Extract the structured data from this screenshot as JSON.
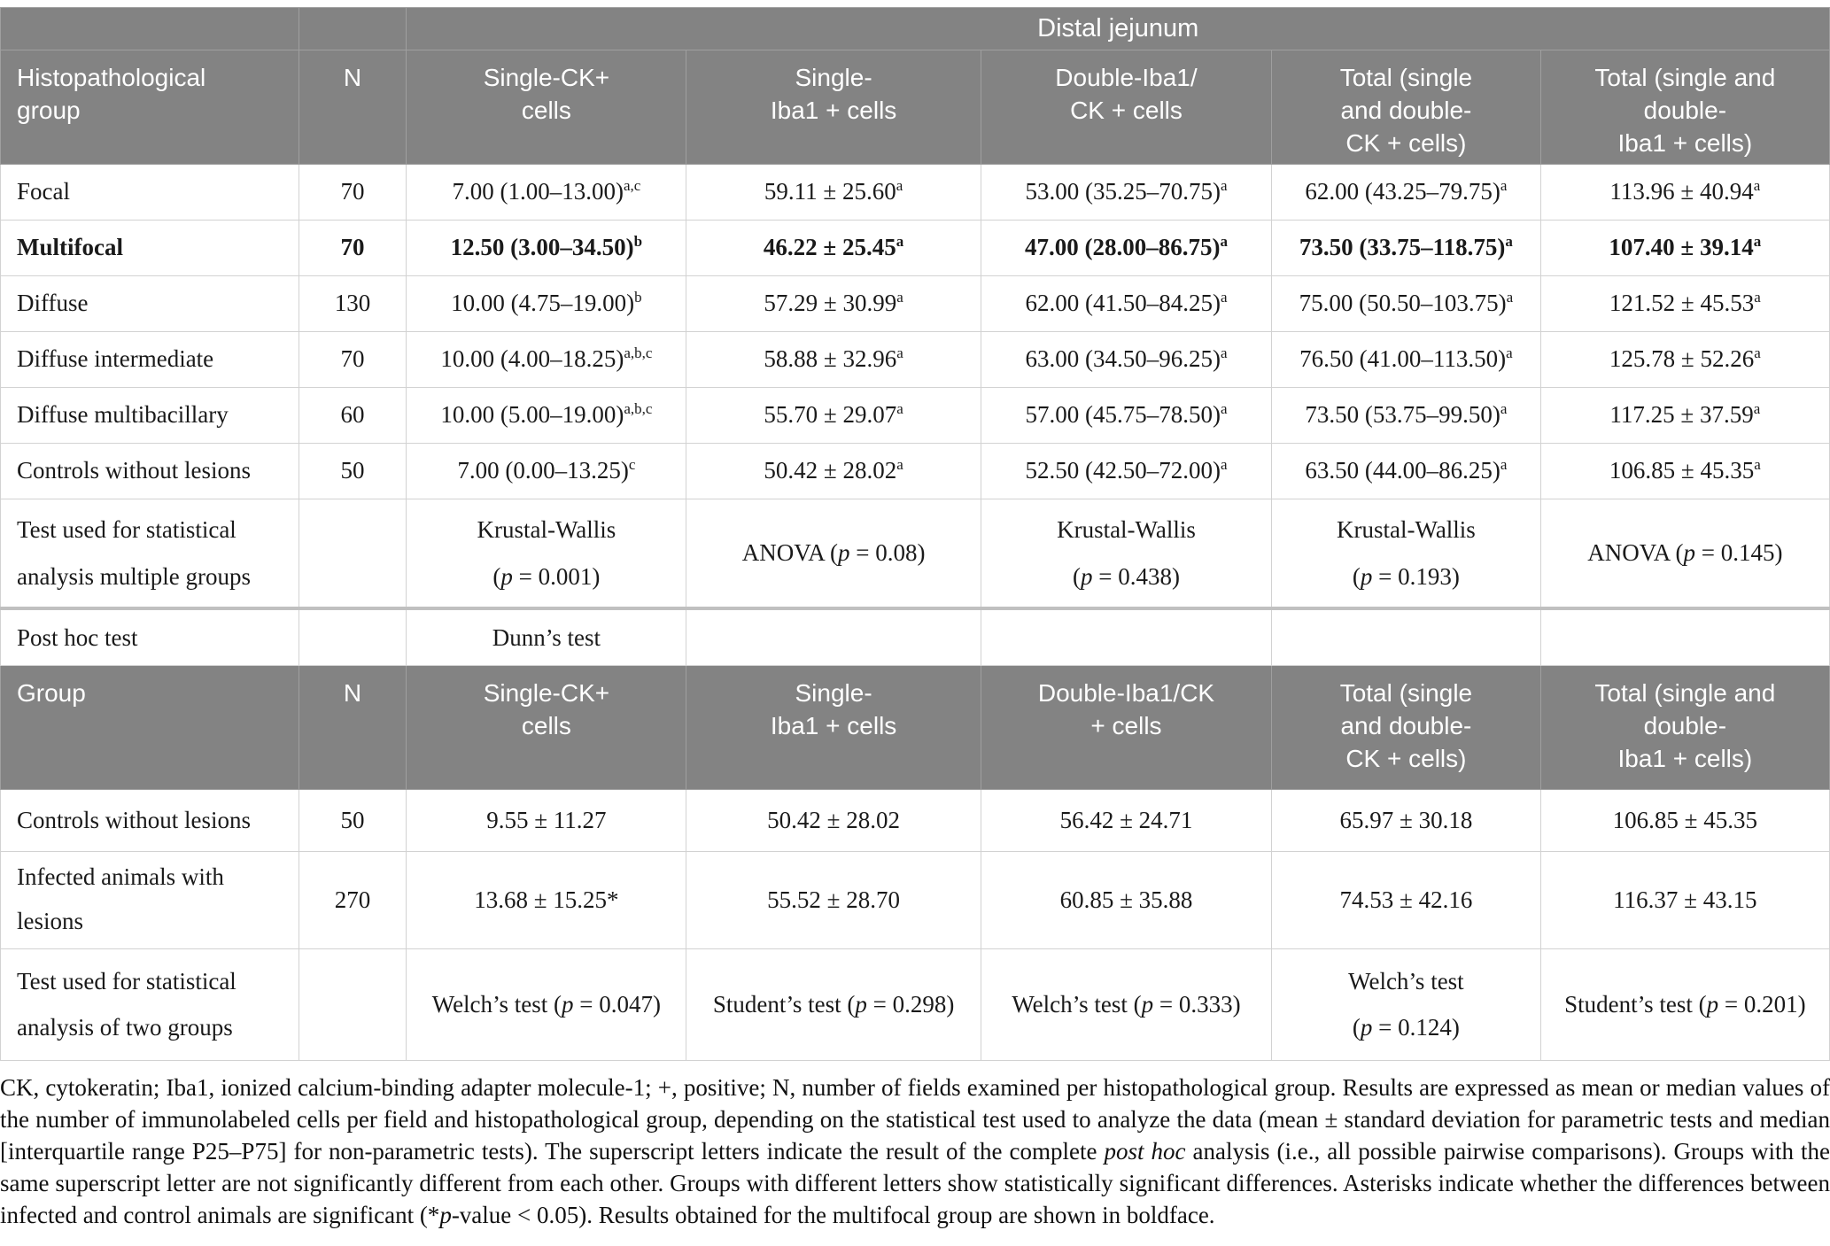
{
  "accent_colors": {
    "header_background": "#838383",
    "header_text": "#ffffff",
    "body_text": "#1a1a1a",
    "grid_line": "#d2d2d2"
  },
  "distal_jejunum_label": "Distal jejunum",
  "section1": {
    "headers": [
      "Histopathological<br>group",
      "N",
      "Single-CK+<br>cells",
      "Single-<br>Iba1 + cells",
      "Double-Iba1/<br>CK + cells",
      "Total (single<br>and double-<br>CK + cells)",
      "Total (single and<br>double-<br>Iba1 + cells)"
    ],
    "rows": [
      {
        "bold": false,
        "cells": [
          "Focal",
          "70",
          "7.00 (1.00–13.00)<sup>a,c</sup>",
          "59.11 ± 25.60<sup>a</sup>",
          "53.00 (35.25–70.75)<sup>a</sup>",
          "62.00 (43.25–79.75)<sup>a</sup>",
          "113.96 ± 40.94<sup>a</sup>"
        ]
      },
      {
        "bold": true,
        "cells": [
          "Multifocal",
          "70",
          "12.50 (3.00–34.50)<sup>b</sup>",
          "46.22 ± 25.45<sup>a</sup>",
          "47.00 (28.00–86.75)<sup>a</sup>",
          "73.50 (33.75–118.75)<sup>a</sup>",
          "107.40 ± 39.14<sup>a</sup>"
        ]
      },
      {
        "bold": false,
        "cells": [
          "Diffuse",
          "130",
          "10.00 (4.75–19.00)<sup>b</sup>",
          "57.29 ± 30.99<sup>a</sup>",
          "62.00 (41.50–84.25)<sup>a</sup>",
          "75.00 (50.50–103.75)<sup>a</sup>",
          "121.52 ± 45.53<sup>a</sup>"
        ]
      },
      {
        "bold": false,
        "cells": [
          "Diffuse intermediate",
          "70",
          "10.00 (4.00–18.25)<sup>a,b,c</sup>",
          "58.88 ± 32.96<sup>a</sup>",
          "63.00 (34.50–96.25)<sup>a</sup>",
          "76.50 (41.00–113.50)<sup>a</sup>",
          "125.78 ± 52.26<sup>a</sup>"
        ]
      },
      {
        "bold": false,
        "cells": [
          "Diffuse multibacillary",
          "60",
          "10.00 (5.00–19.00)<sup>a,b,c</sup>",
          "55.70 ± 29.07<sup>a</sup>",
          "57.00 (45.75–78.50)<sup>a</sup>",
          "73.50 (53.75–99.50)<sup>a</sup>",
          "117.25 ± 37.59<sup>a</sup>"
        ]
      },
      {
        "bold": false,
        "cells": [
          "Controls without lesions",
          "50",
          "7.00 (0.00–13.25)<sup>c</sup>",
          "50.42 ± 28.02<sup>a</sup>",
          "52.50 (42.50–72.00)<sup>a</sup>",
          "63.50 (44.00–86.25)<sup>a</sup>",
          "106.85 ± 45.35<sup>a</sup>"
        ]
      },
      {
        "bold": false,
        "cells": [
          "Test used for statistical analysis multiple groups",
          "",
          "Krustal-Wallis<br>(<i>p</i> = 0.001)",
          "ANOVA (<i>p</i> = 0.08)",
          "Krustal-Wallis<br>(<i>p</i> = 0.438)",
          "Krustal-Wallis<br>(<i>p</i> = 0.193)",
          "ANOVA (<i>p</i> = 0.145)"
        ]
      },
      {
        "bold": false,
        "cells": [
          "Post hoc test",
          "",
          "Dunn’s test",
          "",
          "",
          "",
          ""
        ]
      }
    ]
  },
  "section2": {
    "headers": [
      "Group",
      "N",
      "Single-CK+<br>cells",
      "Single-<br>Iba1 + cells",
      "Double-Iba1/CK<br>+ cells",
      "Total (single<br>and double-<br>CK + cells)",
      "Total (single and<br>double-<br>Iba1 + cells)"
    ],
    "rows": [
      {
        "bold": false,
        "cells": [
          "Controls without lesions",
          "50",
          "9.55 ± 11.27",
          "50.42 ± 28.02",
          "56.42 ± 24.71",
          "65.97 ± 30.18",
          "106.85 ± 45.35"
        ]
      },
      {
        "bold": false,
        "cells": [
          "Infected animals with lesions",
          "270",
          "13.68 ± 15.25*",
          "55.52 ± 28.70",
          "60.85 ± 35.88",
          "74.53 ± 42.16",
          "116.37 ± 43.15"
        ]
      },
      {
        "bold": false,
        "cells": [
          "Test used for statistical analysis of two groups",
          "",
          "Welch’s test (<i>p</i> = 0.047)",
          "Student’s test (<i>p</i> = 0.298)",
          "Welch’s test (<i>p</i> = 0.333)",
          "Welch’s test<br>(<i>p</i> = 0.124)",
          "Student’s test (<i>p</i> = 0.201)"
        ]
      }
    ]
  },
  "footnote": "CK, cytokeratin; Iba1, ionized calcium-binding adapter molecule-1; +, positive; N, number of fields examined per histopathological group. Results are expressed as mean or median values of the number of immunolabeled cells per field and histopathological group, depending on the statistical test used to analyze the data (mean ± standard deviation for parametric tests and median [interquartile range P25–P75] for non-parametric tests). The superscript letters indicate the result of the complete <i>post hoc</i> analysis (i.e., all possible pairwise comparisons). Groups with the same superscript letter are not significantly different from each other. Groups with different letters show statistically significant differences. Asterisks indicate whether the differences between infected and control animals are significant (*<i>p</i>-value &lt; 0.05). Results obtained for the multifocal group are shown in boldface."
}
